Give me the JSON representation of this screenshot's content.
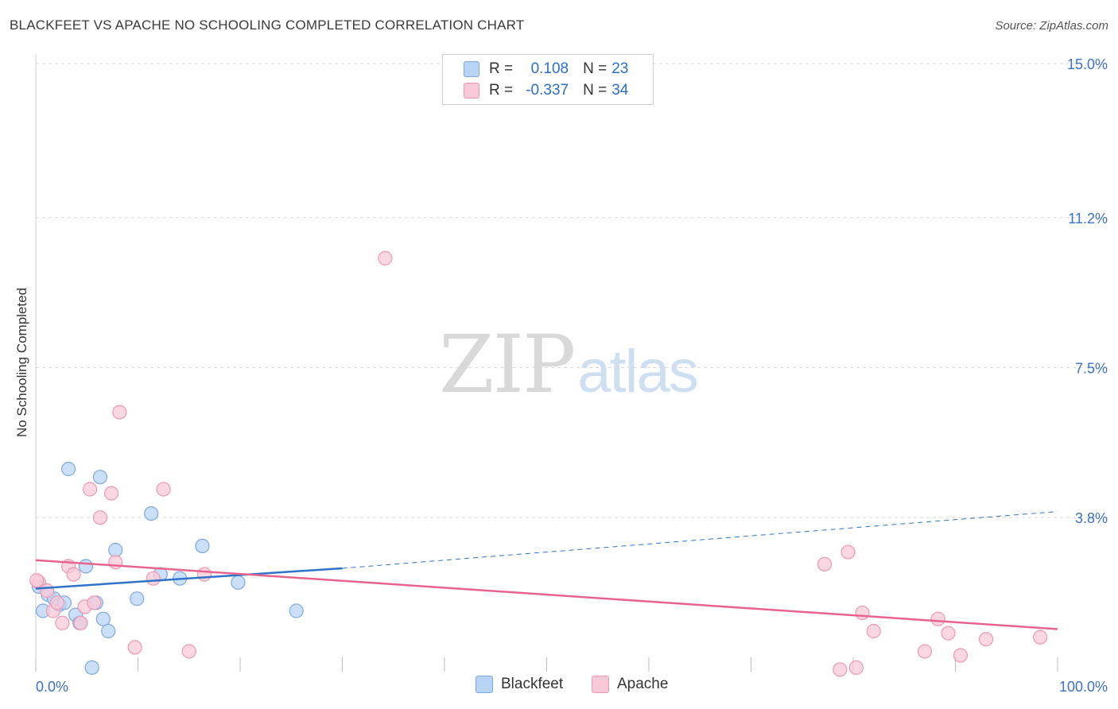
{
  "header": {
    "title": "BLACKFEET VS APACHE NO SCHOOLING COMPLETED CORRELATION CHART",
    "source": "Source: ZipAtlas.com"
  },
  "watermark": {
    "zip": "ZIP",
    "atlas": "atlas"
  },
  "legend": {
    "rows": [
      {
        "r_label": "R =",
        "r_value": "0.108",
        "n_label": "N =",
        "n_value": "23"
      },
      {
        "r_label": "R =",
        "r_value": "-0.337",
        "n_label": "N =",
        "n_value": "34"
      }
    ],
    "bottom": [
      {
        "label": "Blackfeet"
      },
      {
        "label": "Apache"
      }
    ]
  },
  "colors": {
    "blackfeet_fill": "#b8d4f5",
    "blackfeet_stroke": "#7ea9de",
    "blackfeet_line": "#2e73c8",
    "apache_fill": "#f9c9d8",
    "apache_stroke": "#ee98b4",
    "apache_line": "#e8648f",
    "tick_text": "#3b72c4",
    "grid": "#d9d9d9"
  },
  "chart_data": {
    "type": "scatter",
    "xlabel": "",
    "ylabel": "No Schooling Completed",
    "xlim": [
      0,
      100
    ],
    "ylim": [
      0,
      15
    ],
    "x_tick_labels": [
      "0.0%",
      "100.0%"
    ],
    "y_ticks": [
      3.8,
      7.5,
      11.2,
      15.0
    ],
    "y_tick_labels": [
      "3.8%",
      "7.5%",
      "11.2%",
      "15.0%"
    ],
    "grid": "horizontal dashed",
    "series": [
      {
        "name": "Blackfeet",
        "points": [
          [
            0.3,
            2.1
          ],
          [
            0.7,
            1.5
          ],
          [
            1.2,
            1.9
          ],
          [
            1.8,
            1.8
          ],
          [
            2.3,
            1.65
          ],
          [
            2.8,
            1.7
          ],
          [
            3.2,
            5.0
          ],
          [
            3.9,
            1.4
          ],
          [
            4.3,
            1.2
          ],
          [
            4.9,
            2.6
          ],
          [
            5.5,
            0.1
          ],
          [
            5.9,
            1.7
          ],
          [
            6.3,
            4.8
          ],
          [
            6.6,
            1.3
          ],
          [
            7.1,
            1.0
          ],
          [
            7.8,
            3.0
          ],
          [
            9.9,
            1.8
          ],
          [
            11.3,
            3.9
          ],
          [
            12.2,
            2.4
          ],
          [
            14.1,
            2.3
          ],
          [
            16.3,
            3.1
          ],
          [
            19.8,
            2.2
          ],
          [
            25.5,
            1.5
          ]
        ],
        "trend": {
          "x": [
            0,
            30
          ],
          "y": [
            2.05,
            2.55
          ],
          "dashed_extension": {
            "x": [
              30,
              100
            ],
            "y": [
              2.55,
              3.95
            ]
          }
        }
      },
      {
        "name": "Apache",
        "points": [
          [
            0.3,
            2.2
          ],
          [
            1.1,
            2.0
          ],
          [
            1.7,
            1.5
          ],
          [
            2.1,
            1.7
          ],
          [
            2.6,
            1.2
          ],
          [
            3.2,
            2.6
          ],
          [
            3.7,
            2.4
          ],
          [
            4.4,
            1.2
          ],
          [
            4.8,
            1.6
          ],
          [
            5.3,
            4.5
          ],
          [
            5.7,
            1.7
          ],
          [
            6.3,
            3.8
          ],
          [
            7.4,
            4.4
          ],
          [
            7.8,
            2.7
          ],
          [
            8.2,
            6.4
          ],
          [
            9.7,
            0.6
          ],
          [
            11.5,
            2.3
          ],
          [
            12.5,
            4.5
          ],
          [
            15.0,
            0.5
          ],
          [
            16.5,
            2.4
          ],
          [
            34.2,
            10.2
          ],
          [
            77.2,
            2.65
          ],
          [
            78.7,
            0.05
          ],
          [
            79.5,
            2.95
          ],
          [
            80.3,
            0.1
          ],
          [
            80.9,
            1.45
          ],
          [
            82.0,
            1.0
          ],
          [
            87.0,
            0.5
          ],
          [
            88.3,
            1.3
          ],
          [
            89.3,
            0.95
          ],
          [
            90.5,
            0.4
          ],
          [
            93.0,
            0.8
          ],
          [
            98.3,
            0.85
          ],
          [
            0.1,
            2.25
          ]
        ],
        "trend": {
          "x": [
            0,
            100
          ],
          "y": [
            2.75,
            1.05
          ]
        }
      }
    ]
  }
}
